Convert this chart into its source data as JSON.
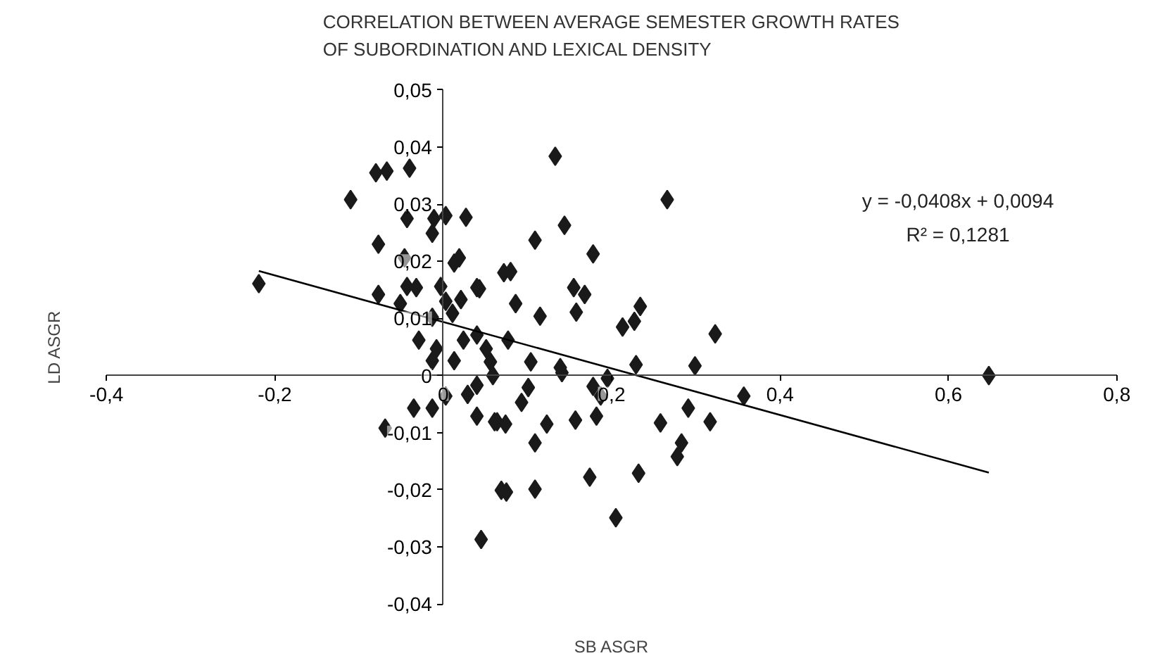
{
  "chart_data": {
    "type": "scatter",
    "title": "CORRELATION BETWEEN AVERAGE SEMESTER GROWTH RATES\nOF  SUBORDINATION AND LEXICAL DENSITY",
    "xlabel": "SB ASGR",
    "ylabel": "LD ASGR",
    "xlim": [
      -0.4,
      0.8
    ],
    "ylim": [
      -0.04,
      0.05
    ],
    "xticks": [
      {
        "value": -0.4,
        "label": "-0,4"
      },
      {
        "value": -0.2,
        "label": "-0,2"
      },
      {
        "value": 0,
        "label": "0"
      },
      {
        "value": 0.2,
        "label": "0,2"
      },
      {
        "value": 0.4,
        "label": "0,4"
      },
      {
        "value": 0.6,
        "label": "0,6"
      },
      {
        "value": 0.8,
        "label": "0,8"
      }
    ],
    "yticks": [
      {
        "value": -0.04,
        "label": "-0,04"
      },
      {
        "value": -0.03,
        "label": "-0,03"
      },
      {
        "value": -0.02,
        "label": "-0,02"
      },
      {
        "value": -0.01,
        "label": "-0,01"
      },
      {
        "value": 0,
        "label": "0"
      },
      {
        "value": 0.01,
        "label": "0,01"
      },
      {
        "value": 0.02,
        "label": "0,02"
      },
      {
        "value": 0.03,
        "label": "0,03"
      },
      {
        "value": 0.04,
        "label": "0,04"
      },
      {
        "value": 0.05,
        "label": "0,05"
      }
    ],
    "grid": false,
    "annotations": [
      "y = -0,0408x + 0,0094",
      "R² = 0,1281"
    ],
    "series": [
      {
        "marker": "diamond",
        "color": "#1a1a1a",
        "x": [
          -0.219,
          -0.11,
          -0.08,
          -0.067,
          -0.04,
          -0.043,
          -0.011,
          0.003,
          0.027,
          -0.013,
          -0.077,
          -0.046,
          0.019,
          0.013,
          -0.043,
          -0.032,
          -0.003,
          0.04,
          -0.077,
          -0.051,
          0.003,
          0.021,
          0.011,
          -0.013,
          -0.029,
          -0.008,
          -0.013,
          0.013,
          0.024,
          0.04,
          0.051,
          0.072,
          -0.035,
          -0.013,
          0.003,
          0.029,
          0.04,
          0.059,
          0.04,
          0.061,
          -0.069,
          0.069,
          0.045,
          0.133,
          0.266,
          0.144,
          0.109,
          0.178,
          0.08,
          0.043,
          0.155,
          0.168,
          0.086,
          0.115,
          0.158,
          0.234,
          0.227,
          0.213,
          0.323,
          0.077,
          0.104,
          0.139,
          0.229,
          0.299,
          0.056,
          0.141,
          0.101,
          0.195,
          0.178,
          0.187,
          0.093,
          0.064,
          0.074,
          0.123,
          0.157,
          0.182,
          0.258,
          0.291,
          0.317,
          0.109,
          0.283,
          0.278,
          0.174,
          0.232,
          0.075,
          0.109,
          0.205,
          0.357,
          0.648
        ],
        "values": [
          0.0161,
          0.0308,
          0.0355,
          0.0358,
          0.0363,
          0.0275,
          0.0275,
          0.028,
          0.0277,
          0.0249,
          0.023,
          0.0206,
          0.0206,
          0.0197,
          0.0156,
          0.0154,
          0.0156,
          0.0154,
          0.0142,
          0.0126,
          0.013,
          0.0133,
          0.0109,
          0.0102,
          0.0062,
          0.0047,
          0.0026,
          0.0026,
          0.0062,
          0.0071,
          0.0047,
          0.018,
          -0.0057,
          -0.0057,
          -0.0036,
          -0.0033,
          -0.0017,
          0.0,
          -0.0071,
          -0.0081,
          -0.0092,
          -0.0201,
          -0.0287,
          0.0384,
          0.0308,
          0.0263,
          0.0237,
          0.0213,
          0.0182,
          0.0152,
          0.0154,
          0.0142,
          0.0126,
          0.0104,
          0.0111,
          0.0121,
          0.0095,
          0.0085,
          0.0073,
          0.0062,
          0.0024,
          0.0014,
          0.0019,
          0.0017,
          0.0024,
          0.0005,
          -0.0021,
          -0.0005,
          -0.0019,
          -0.0036,
          -0.0047,
          -0.0081,
          -0.0085,
          -0.0085,
          -0.0078,
          -0.0071,
          -0.0083,
          -0.0057,
          -0.0081,
          -0.0118,
          -0.0118,
          -0.0142,
          -0.0178,
          -0.0171,
          -0.0204,
          -0.0199,
          -0.0249,
          -0.0036,
          0.0
        ]
      },
      {
        "type": "line",
        "color": "#000000",
        "x": [
          -0.219,
          0.648
        ],
        "values": [
          0.0183,
          -0.017
        ],
        "line_style": "solid"
      }
    ]
  }
}
